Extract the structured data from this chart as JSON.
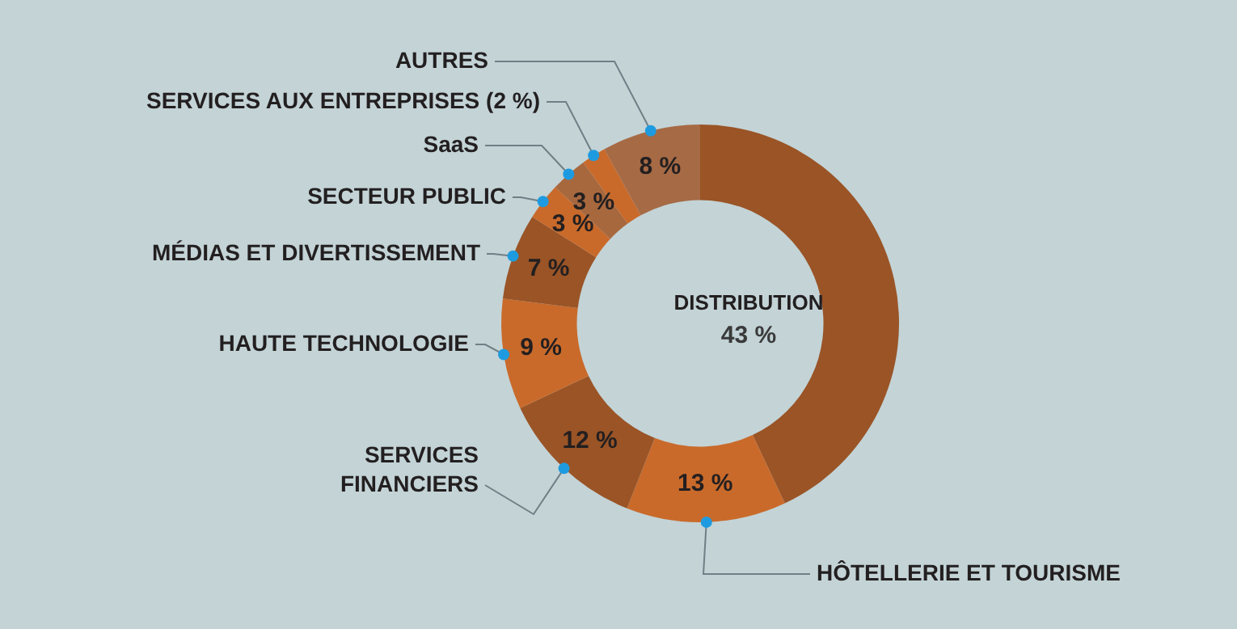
{
  "chart_data": {
    "type": "donut",
    "categories": [
      "DISTRIBUTION",
      "HÔTELLERIE ET TOURISME",
      "SERVICES FINANCIERS",
      "HAUTE TECHNOLOGIE",
      "MÉDIAS ET DIVERTISSEMENT",
      "SECTEUR PUBLIC",
      "SaaS",
      "SERVICES AUX ENTREPRISES (2 %)",
      "AUTRES"
    ],
    "values": [
      43,
      13,
      12,
      9,
      7,
      3,
      3,
      2,
      8
    ],
    "colors": [
      "#9a5426",
      "#c96a2b",
      "#9a5426",
      "#c96a2b",
      "#9a5426",
      "#c96a2b",
      "#a8683e",
      "#c96a2b",
      "#a66a45"
    ],
    "value_labels": [
      "43 %",
      "13 %",
      "12 %",
      "9 %",
      "7 %",
      "3 %",
      "3 %",
      null,
      "8 %"
    ],
    "legend": false
  }
}
